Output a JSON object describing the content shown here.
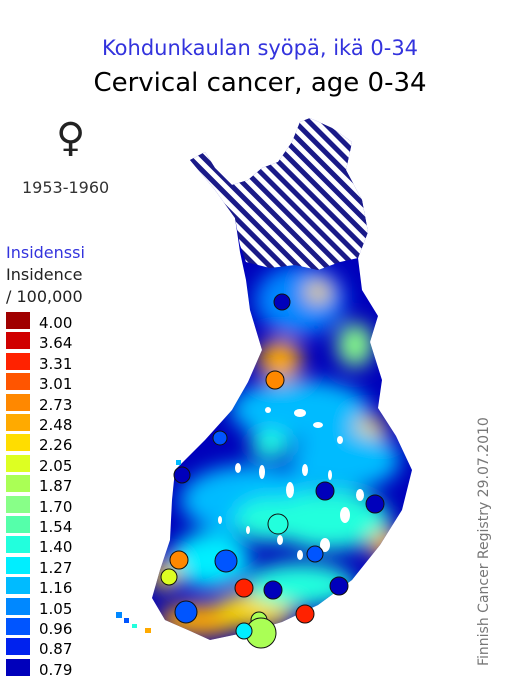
{
  "title_fi": "Kohdunkaulan syöpä, ikä 0-34",
  "title_en": "Cervical cancer, age 0-34",
  "sex_symbol": "♀",
  "period": "1953-1960",
  "legend": {
    "title_fi": "Insidenssi",
    "title_en": "Insidence",
    "unit": "/ 100,000",
    "items": [
      {
        "label": "4.00",
        "color": "#a00000"
      },
      {
        "label": "3.64",
        "color": "#d00000"
      },
      {
        "label": "3.31",
        "color": "#ff2200"
      },
      {
        "label": "3.01",
        "color": "#ff5500"
      },
      {
        "label": "2.73",
        "color": "#ff8800"
      },
      {
        "label": "2.48",
        "color": "#ffaa00"
      },
      {
        "label": "2.26",
        "color": "#ffdd00"
      },
      {
        "label": "2.05",
        "color": "#ddff22"
      },
      {
        "label": "1.87",
        "color": "#aaff55"
      },
      {
        "label": "1.70",
        "color": "#88ff88"
      },
      {
        "label": "1.54",
        "color": "#55ffaa"
      },
      {
        "label": "1.40",
        "color": "#22ffdd"
      },
      {
        "label": "1.27",
        "color": "#00eeff"
      },
      {
        "label": "1.16",
        "color": "#00bbff"
      },
      {
        "label": "1.05",
        "color": "#0088ff"
      },
      {
        "label": "0.96",
        "color": "#0055ff"
      },
      {
        "label": "0.87",
        "color": "#0022ee"
      },
      {
        "label": "0.79",
        "color": "#0000bb"
      }
    ]
  },
  "credit": "Finnish Cancer Registry 29.07.2010",
  "colors": {
    "base": "#0000bb",
    "hatch": "#1a1a88",
    "title_fi": "#3333dd"
  }
}
